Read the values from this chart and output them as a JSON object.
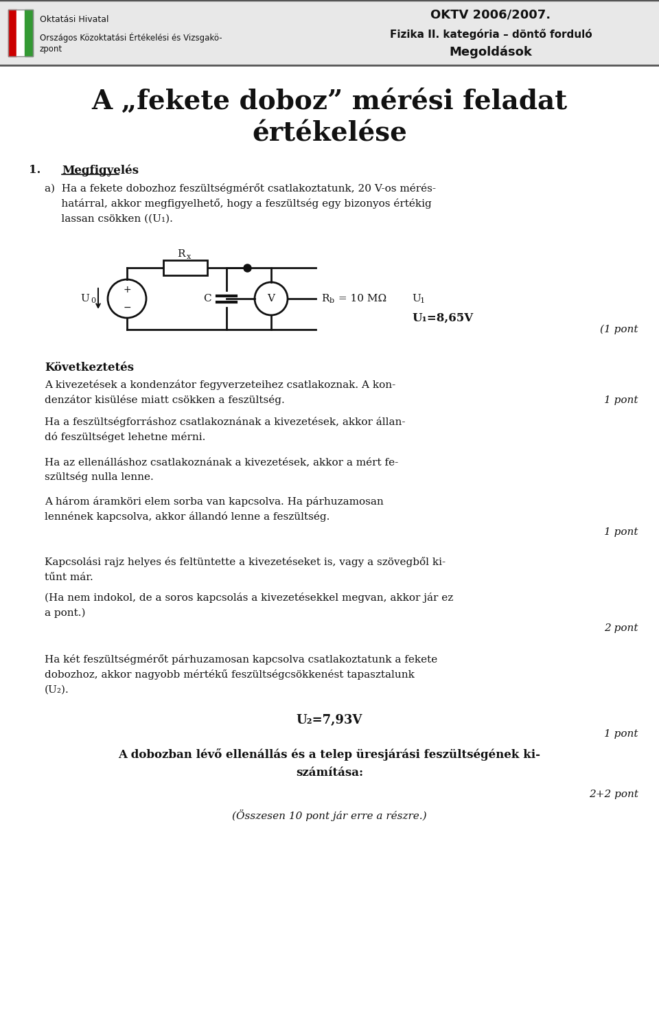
{
  "bg_color": "#ffffff",
  "header_bg": "#e8e8e8",
  "logo_text_line1": "Oktatási Hivatal",
  "logo_text_line2": "Országos Közoktatási Értékelési és Vizsgakö zpont",
  "header_right_line1": "OKTV 2006/2007.",
  "header_right_line2": "Fizika II. kategória – döntő forduló",
  "header_right_line3": "Megoldások",
  "main_title_line1": "A „fekete doboz” mérési feladat",
  "main_title_line2": "értékelése",
  "section1_number": "1.",
  "section1_title": "Megfigyelés",
  "para_a_lines": [
    "a)  Ha a fekete dobozhoz feszültségmérőt csatlakoztatunk, 20 V-os mérés-",
    "     határral, akkor megfigyelhető, hogy a feszültség egy bizonyos értékig",
    "     lassan csökken ((U₁)."
  ],
  "circuit_label_Rx": "Rx",
  "circuit_label_U0": "U0",
  "circuit_label_C": "C",
  "circuit_label_V": "V",
  "circuit_label_Rb": "Rb = 10 MΩ",
  "circuit_label_U1": "U1",
  "u1_value": "U₁=8,65V",
  "pont1a": "(1 pont",
  "kövt_title": "Következtetés",
  "kövt_lines": [
    "A kivezetések a kondenzátor fegyverzeteihez csatlakoznak. A kon-",
    "denzátor kisülése miatt csökken a feszültség."
  ],
  "pont1b": "1 pont",
  "b_lines1": [
    "Ha a feszültségforráshoz csatlakoznának a kivezetések, akkor állan-",
    "dó feszültséget lehetne mérni."
  ],
  "b_lines2": [
    "Ha az ellenálláshoz csatlakoznának a kivezetések, akkor a mért fe-",
    "szültség nulla lenne."
  ],
  "b_lines3": [
    "A három áramköri elem sorba van kapcsolva. Ha párhuzamosan",
    "lennének kapcsolva, akkor állandó lenne a feszültség."
  ],
  "pont1c": "1 pont",
  "c_lines1": [
    "Kapcsolási rajz helyes és feltüntette a kivezetéseket is, vagy a szövegből ki-",
    "tűnt már."
  ],
  "c_lines2": [
    "(Ha nem indokol, de a soros kapcsolás a kivezetésekkel megvan, akkor jár ez",
    "a pont.)"
  ],
  "pont2": "2 pont",
  "d_lines": [
    "Ha két feszültségmérőt párhuzamosan kapcsolva csatlakoztatunk a fekete",
    "dobozhoz, akkor nagyobb mértékű feszültségcsökkenést tapasztalunk",
    "(U₂)."
  ],
  "u2_value": "U₂=7,93V",
  "pont1d": "1 pont",
  "conclusion_lines": [
    "A dobozban lévő ellenállás és a telep üresjárási feszültségének ki-",
    "számítása:"
  ],
  "pont_final": "2+2 pont",
  "total_text": "(Összesen 10 pont jár erre a részre.)"
}
